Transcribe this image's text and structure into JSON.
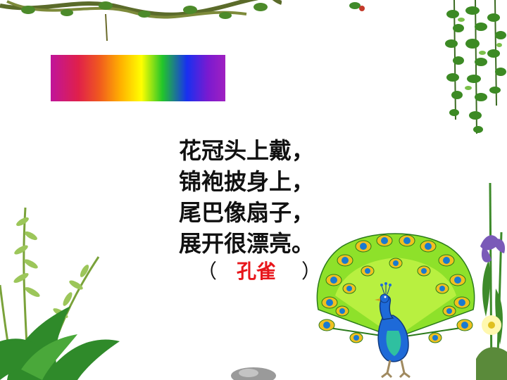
{
  "riddle": {
    "lines": [
      "花冠头上戴，",
      "锦袍披身上，",
      "尾巴像扇子，",
      "展开很漂亮。"
    ],
    "paren_left": "（",
    "answer": "孔雀",
    "paren_right": "）"
  },
  "icons": {
    "top_vine": "hanging-vine-icon",
    "right_vine": "hanging-ivy-icon",
    "left_plant": "fern-plant-icon",
    "right_flowers": "iris-flower-icon",
    "peacock": "peacock-icon"
  },
  "colors": {
    "answer": "#e8161b",
    "text": "#111111"
  }
}
